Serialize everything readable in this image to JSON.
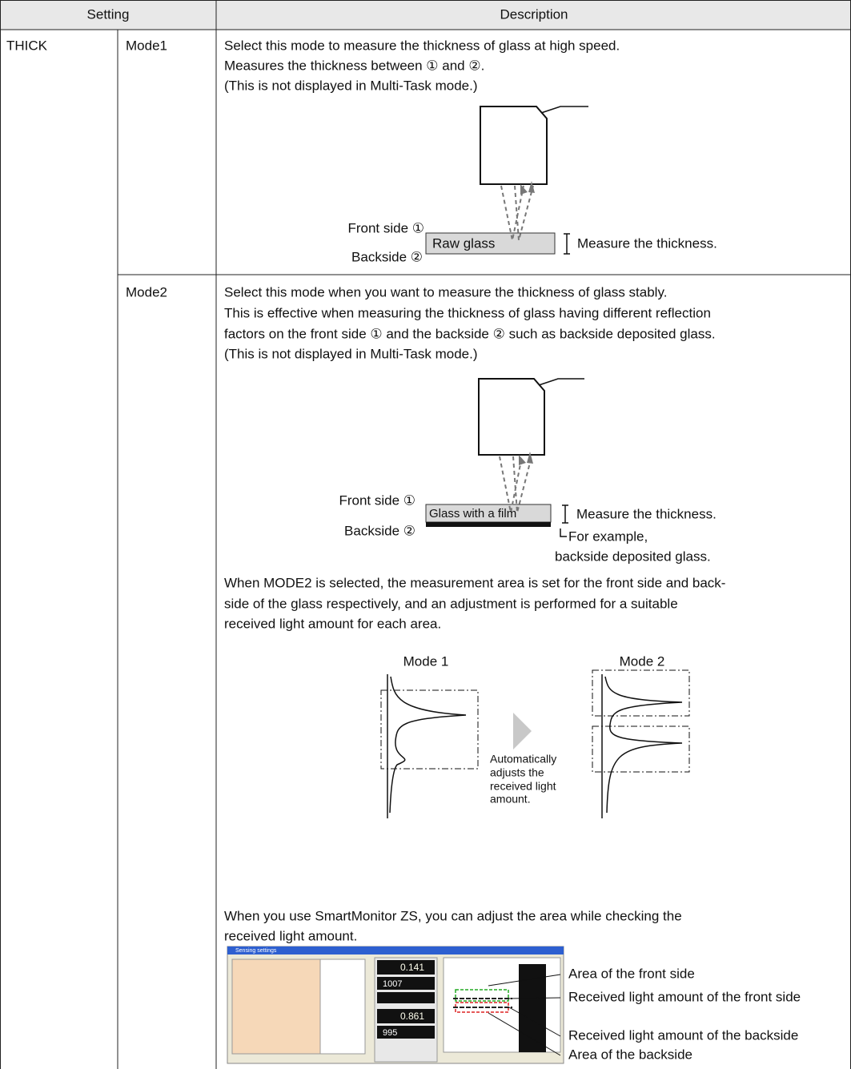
{
  "header": {
    "setting": "Setting",
    "description": "Description"
  },
  "rows": [
    {
      "group": "THICK",
      "mode": "Mode1",
      "lines": [
        "Select this mode to measure the thickness of glass at high speed.",
        "Measures the thickness between ① and ②.",
        "(This is not displayed in Multi-Task mode.)"
      ],
      "diagram": {
        "front": "Front side ①",
        "back": "Backside ②",
        "glass": "Raw glass",
        "measure": "Measure the thickness."
      }
    },
    {
      "mode": "Mode2",
      "lines": [
        "Select this mode when you want to measure the thickness of glass stably.",
        "This is effective when measuring the thickness of glass having different reflection",
        "factors on the front side ① and the backside ② such as backside deposited glass.",
        "(This is not displayed in Multi-Task mode.)"
      ],
      "diagram": {
        "front": "Front side ①",
        "back": "Backside ②",
        "glass": "Glass with a film",
        "measure": "Measure the thickness.",
        "note": [
          "For example,",
          "backside deposited glass."
        ]
      },
      "paragraph": [
        "When MODE2 is selected, the measurement area is set for the front side and back-",
        "side of the glass respectively, and an adjustment is performed for a suitable",
        "received light amount for each area."
      ],
      "comparison": {
        "mode1": "Mode 1",
        "mode2": "Mode 2",
        "arrow_text": [
          "Automatically",
          "adjusts the",
          "received light",
          "amount."
        ]
      },
      "paragraph2": [
        "When you use SmartMonitor ZS, you can adjust the area while checking the",
        "received light amount."
      ],
      "screenshot": {
        "title": "Sensing settings",
        "values": [
          "0.141",
          "1007",
          "0.861",
          "995"
        ],
        "callouts": [
          "Area of the front side",
          "Received light amount of the front side",
          "Received light amount of the backside",
          "Area of the backside"
        ]
      }
    }
  ]
}
